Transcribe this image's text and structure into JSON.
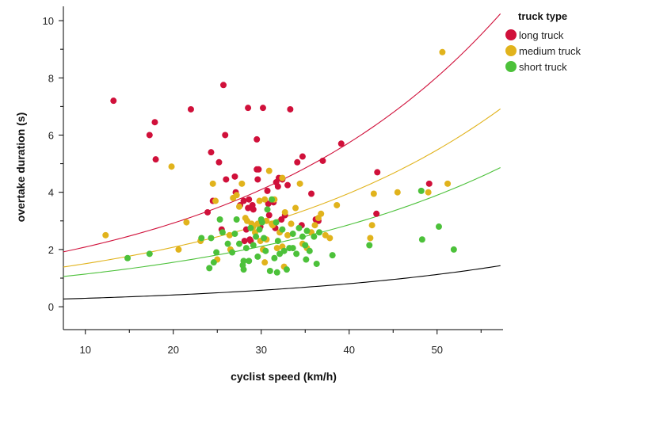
{
  "chart_data": {
    "type": "scatter",
    "xlabel": "cyclist speed (km/h)",
    "ylabel": "overtake duration (s)",
    "xlim": [
      7.5,
      57.5
    ],
    "ylim": [
      -0.8,
      10.5
    ],
    "x_ticks": [
      10,
      20,
      30,
      40,
      50
    ],
    "y_ticks": [
      0,
      2,
      4,
      6,
      8,
      10
    ],
    "grid": false,
    "legend": {
      "title": "truck type",
      "position": "top-right"
    },
    "colors": {
      "long truck": "#d0103a",
      "medium truck": "#e1b31c",
      "short truck": "#4cc13a",
      "baseline": "#000000"
    },
    "series": [
      {
        "name": "long truck",
        "color": "#d0103a",
        "points": [
          [
            13.2,
            7.2
          ],
          [
            17.3,
            6.0
          ],
          [
            17.9,
            6.45
          ],
          [
            18.0,
            5.15
          ],
          [
            22.0,
            6.9
          ],
          [
            25.7,
            7.75
          ],
          [
            28.5,
            6.95
          ],
          [
            30.2,
            6.95
          ],
          [
            33.3,
            6.9
          ],
          [
            39.1,
            5.7
          ],
          [
            25.9,
            6.0
          ],
          [
            29.5,
            5.85
          ],
          [
            24.3,
            5.4
          ],
          [
            25.2,
            5.05
          ],
          [
            34.1,
            5.05
          ],
          [
            34.7,
            5.25
          ],
          [
            37.0,
            5.1
          ],
          [
            29.5,
            4.8
          ],
          [
            29.7,
            4.8
          ],
          [
            27.0,
            4.55
          ],
          [
            26.0,
            4.45
          ],
          [
            29.6,
            4.45
          ],
          [
            31.7,
            4.35
          ],
          [
            32.0,
            4.5
          ],
          [
            32.4,
            4.45
          ],
          [
            33.0,
            4.25
          ],
          [
            31.9,
            4.2
          ],
          [
            27.1,
            4.0
          ],
          [
            30.7,
            4.05
          ],
          [
            35.7,
            3.95
          ],
          [
            24.5,
            3.7
          ],
          [
            28.0,
            3.7
          ],
          [
            28.6,
            3.75
          ],
          [
            28.5,
            3.45
          ],
          [
            29.0,
            3.55
          ],
          [
            30.8,
            3.6
          ],
          [
            31.4,
            3.65
          ],
          [
            23.9,
            3.3
          ],
          [
            29.1,
            3.4
          ],
          [
            32.7,
            3.2
          ],
          [
            34.6,
            2.85
          ],
          [
            36.2,
            3.05
          ],
          [
            36.5,
            3.0
          ],
          [
            29.9,
            2.8
          ],
          [
            30.9,
            3.2
          ],
          [
            28.3,
            2.7
          ],
          [
            25.5,
            2.7
          ],
          [
            28.7,
            2.35
          ],
          [
            28.1,
            2.3
          ],
          [
            28.8,
            2.3
          ],
          [
            31.6,
            2.75
          ],
          [
            43.2,
            4.7
          ],
          [
            43.1,
            3.25
          ],
          [
            49.1,
            4.3
          ],
          [
            30.1,
            3.0
          ],
          [
            27.6,
            3.55
          ],
          [
            32.3,
            3.05
          ]
        ]
      },
      {
        "name": "medium truck",
        "color": "#e1b31c",
        "points": [
          [
            12.3,
            2.5
          ],
          [
            19.8,
            4.9
          ],
          [
            20.6,
            2.0
          ],
          [
            21.5,
            2.95
          ],
          [
            23.1,
            2.3
          ],
          [
            24.5,
            4.3
          ],
          [
            24.8,
            3.7
          ],
          [
            25.0,
            1.65
          ],
          [
            26.4,
            2.5
          ],
          [
            26.8,
            3.8
          ],
          [
            27.2,
            3.9
          ],
          [
            27.5,
            3.5
          ],
          [
            27.8,
            4.3
          ],
          [
            28.2,
            3.1
          ],
          [
            28.4,
            3.0
          ],
          [
            28.9,
            2.9
          ],
          [
            29.3,
            2.6
          ],
          [
            29.6,
            2.9
          ],
          [
            29.9,
            2.3
          ],
          [
            30.2,
            2.0
          ],
          [
            30.4,
            1.55
          ],
          [
            30.6,
            3.0
          ],
          [
            30.9,
            4.75
          ],
          [
            31.2,
            2.9
          ],
          [
            31.5,
            3.75
          ],
          [
            31.8,
            2.05
          ],
          [
            32.1,
            2.6
          ],
          [
            32.4,
            2.1
          ],
          [
            32.7,
            3.3
          ],
          [
            33.0,
            2.5
          ],
          [
            33.4,
            2.9
          ],
          [
            33.9,
            3.45
          ],
          [
            34.4,
            4.3
          ],
          [
            34.7,
            2.2
          ],
          [
            35.2,
            2.05
          ],
          [
            35.7,
            2.6
          ],
          [
            36.1,
            2.85
          ],
          [
            36.5,
            3.1
          ],
          [
            36.8,
            3.25
          ],
          [
            37.3,
            2.5
          ],
          [
            37.8,
            2.4
          ],
          [
            38.6,
            3.55
          ],
          [
            42.4,
            2.4
          ],
          [
            42.6,
            2.85
          ],
          [
            42.8,
            3.95
          ],
          [
            45.5,
            4.0
          ],
          [
            49.0,
            4.0
          ],
          [
            50.6,
            8.9
          ],
          [
            51.2,
            4.3
          ],
          [
            32.4,
            4.5
          ],
          [
            29.8,
            3.7
          ],
          [
            30.4,
            3.75
          ],
          [
            32.6,
            1.4
          ],
          [
            31.3,
            2.85
          ],
          [
            26.5,
            2.0
          ],
          [
            29.1,
            2.8
          ],
          [
            30.6,
            2.35
          ]
        ]
      },
      {
        "name": "short truck",
        "color": "#4cc13a",
        "points": [
          [
            14.8,
            1.7
          ],
          [
            17.3,
            1.85
          ],
          [
            23.2,
            2.4
          ],
          [
            24.1,
            1.35
          ],
          [
            24.3,
            2.4
          ],
          [
            24.6,
            1.55
          ],
          [
            24.9,
            1.9
          ],
          [
            25.6,
            2.6
          ],
          [
            26.2,
            2.2
          ],
          [
            26.7,
            1.9
          ],
          [
            27.0,
            2.55
          ],
          [
            27.5,
            2.2
          ],
          [
            27.9,
            1.45
          ],
          [
            28.0,
            1.3
          ],
          [
            28.3,
            2.05
          ],
          [
            28.6,
            1.6
          ],
          [
            28.8,
            2.75
          ],
          [
            29.1,
            2.15
          ],
          [
            29.4,
            2.45
          ],
          [
            29.6,
            1.75
          ],
          [
            29.8,
            2.7
          ],
          [
            30.0,
            3.05
          ],
          [
            30.3,
            2.4
          ],
          [
            30.5,
            1.95
          ],
          [
            30.7,
            3.4
          ],
          [
            31.0,
            1.25
          ],
          [
            31.2,
            3.75
          ],
          [
            31.5,
            1.7
          ],
          [
            31.7,
            2.95
          ],
          [
            31.9,
            2.3
          ],
          [
            32.1,
            1.85
          ],
          [
            32.4,
            2.7
          ],
          [
            32.6,
            1.95
          ],
          [
            32.9,
            1.3
          ],
          [
            33.2,
            2.05
          ],
          [
            33.6,
            2.55
          ],
          [
            34.0,
            1.85
          ],
          [
            34.3,
            2.75
          ],
          [
            34.7,
            2.45
          ],
          [
            35.0,
            2.15
          ],
          [
            35.2,
            2.65
          ],
          [
            35.5,
            1.95
          ],
          [
            36.0,
            2.45
          ],
          [
            36.3,
            1.5
          ],
          [
            36.6,
            2.6
          ],
          [
            38.1,
            1.8
          ],
          [
            42.3,
            2.15
          ],
          [
            48.3,
            2.35
          ],
          [
            48.2,
            4.05
          ],
          [
            50.2,
            2.8
          ],
          [
            51.9,
            2.0
          ],
          [
            25.3,
            3.05
          ],
          [
            27.2,
            3.05
          ],
          [
            30.1,
            2.95
          ],
          [
            33.6,
            2.05
          ],
          [
            35.1,
            1.65
          ],
          [
            31.8,
            1.2
          ],
          [
            28.0,
            1.6
          ]
        ]
      }
    ],
    "fit_lines": [
      {
        "name": "long truck",
        "color": "#d0103a",
        "type": "exponential",
        "a": 1.49,
        "b": 0.0337,
        "x_range": [
          7.5,
          57.2
        ]
      },
      {
        "name": "medium truck",
        "color": "#e1b31c",
        "type": "exponential",
        "a": 1.09,
        "b": 0.0323,
        "x_range": [
          7.5,
          57.2
        ]
      },
      {
        "name": "short truck",
        "color": "#4cc13a",
        "type": "exponential",
        "a": 0.84,
        "b": 0.0307,
        "x_range": [
          7.5,
          57.2
        ]
      },
      {
        "name": "baseline",
        "color": "#000000",
        "type": "exponential",
        "a": 0.21,
        "b": 0.0336,
        "x_range": [
          7.5,
          57.2
        ]
      }
    ]
  }
}
